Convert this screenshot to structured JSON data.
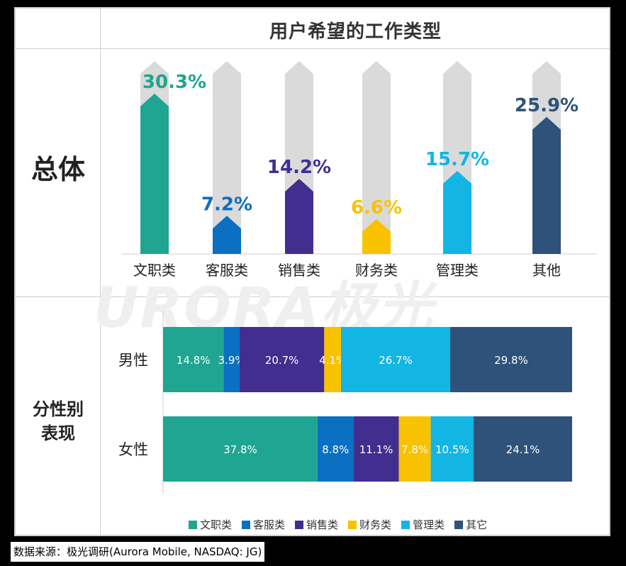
{
  "title": "用户希望的工作类型",
  "section_labels": {
    "overall": "总体",
    "gender_line1": "分性别",
    "gender_line2": "表现"
  },
  "watermark": "URORA极光",
  "source": "数据来源：极光调研(Aurora Mobile, NASDAQ: JG)",
  "colors": {
    "文职类": "#1fa591",
    "客服类": "#0b6fc2",
    "销售类": "#412e8f",
    "财务类": "#f9c200",
    "管理类": "#13b5e3",
    "其他": "#2e527a",
    "background_bar": "#dadada"
  },
  "chart_data": [
    {
      "type": "bar",
      "title": "总体",
      "categories": [
        "文职类",
        "客服类",
        "销售类",
        "财务类",
        "管理类",
        "其他"
      ],
      "values": [
        30.3,
        7.2,
        14.2,
        6.6,
        15.7,
        25.9
      ],
      "labels": [
        "30.3%",
        "7.2%",
        "14.2%",
        "6.6%",
        "15.7%",
        "25.9%"
      ],
      "ylim": [
        0,
        35
      ]
    },
    {
      "type": "bar",
      "stacked": true,
      "orientation": "horizontal",
      "categories": [
        "男性",
        "女性"
      ],
      "series": [
        {
          "name": "文职类",
          "values": [
            14.8,
            37.8
          ],
          "labels": [
            "14.8%",
            "37.8%"
          ]
        },
        {
          "name": "客服类",
          "values": [
            3.9,
            8.8
          ],
          "labels": [
            "3.9%",
            "8.8%"
          ]
        },
        {
          "name": "销售类",
          "values": [
            20.7,
            11.1
          ],
          "labels": [
            "20.7%",
            "11.1%"
          ]
        },
        {
          "name": "财务类",
          "values": [
            4.1,
            7.8
          ],
          "labels": [
            "4.1%",
            "7.8%"
          ]
        },
        {
          "name": "管理类",
          "values": [
            26.7,
            10.5
          ],
          "labels": [
            "26.7%",
            "10.5%"
          ]
        },
        {
          "name": "其它",
          "values": [
            29.8,
            24.1
          ],
          "labels": [
            "29.8%",
            "24.1%"
          ]
        }
      ],
      "legend": [
        "文职类",
        "客服类",
        "销售类",
        "财务类",
        "管理类",
        "其它"
      ]
    }
  ]
}
